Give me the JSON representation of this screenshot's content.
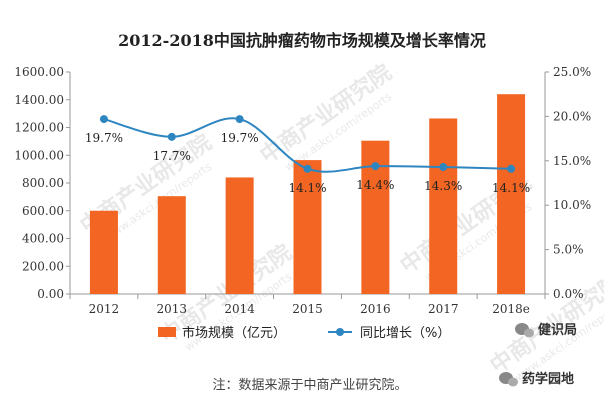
{
  "chart_data": {
    "type": "bar+line",
    "title": "2012-2018中国抗肿瘤药物市场规模及增长率情况",
    "categories": [
      "2012",
      "2013",
      "2014",
      "2015",
      "2016",
      "2017",
      "2018e"
    ],
    "series": [
      {
        "name": "市场规模（亿元）",
        "type": "bar",
        "axis": "left",
        "color": "#f26522",
        "values": [
          600,
          705,
          840,
          965,
          1105,
          1265,
          1440
        ]
      },
      {
        "name": "同比增长（%）",
        "type": "line",
        "axis": "right",
        "color": "#2e86c1",
        "values": [
          19.7,
          17.7,
          19.7,
          14.1,
          14.4,
          14.3,
          14.1
        ],
        "labels": [
          "19.7%",
          "17.7%",
          "19.7%",
          "14.1%",
          "14.4%",
          "14.3%",
          "14.1%"
        ]
      }
    ],
    "y_left": {
      "min": 0,
      "max": 1600,
      "step": 200,
      "ticks": [
        "0.00",
        "200.00",
        "400.00",
        "600.00",
        "800.00",
        "1000.00",
        "1200.00",
        "1400.00",
        "1600.00"
      ]
    },
    "y_right": {
      "min": 0,
      "max": 25,
      "step": 5,
      "ticks": [
        "0.0%",
        "5.0%",
        "10.0%",
        "15.0%",
        "20.0%",
        "25.0%"
      ]
    },
    "grid": false,
    "legend_position": "bottom"
  },
  "footnote": "注：数据来源于中商产业研究院。",
  "watermark": {
    "brand": "中商产业研究院",
    "site": "www.askci.com/reports"
  },
  "wechat": {
    "account1": "健识局",
    "account2": "药学园地"
  }
}
